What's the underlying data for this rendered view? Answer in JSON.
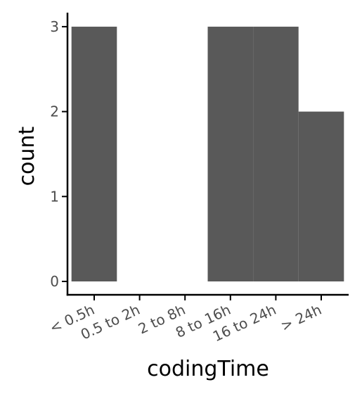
{
  "chart_data": {
    "type": "bar",
    "categories": [
      "< 0.5h",
      "0.5 to 2h",
      "2 to 8h",
      "8 to 16h",
      "16 to 24h",
      "> 24h"
    ],
    "values": [
      3,
      0,
      0,
      3,
      3,
      2
    ],
    "xlabel": "codingTime",
    "ylabel": "count",
    "ylim": [
      0,
      3
    ],
    "yticks": [
      0,
      1,
      2,
      3
    ],
    "grid": false,
    "bar_color": "#595959",
    "axis_color": "#000000",
    "tick_label_color": "#4d4d4d"
  }
}
